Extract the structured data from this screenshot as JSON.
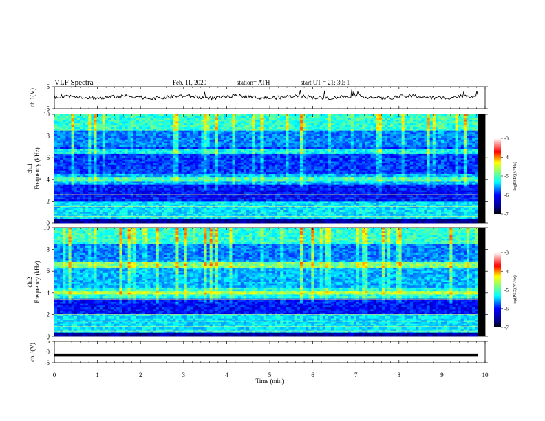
{
  "header": {
    "title": "VLF  Spectra",
    "date": "Feb. 11, 2020",
    "station": "station= ATH",
    "start": "start  UT  =    21: 30: 1"
  },
  "chart_data": [
    {
      "type": "line",
      "ylabel": "ch.1(V)",
      "ylim": [
        -5,
        5
      ],
      "yticks": [
        5,
        -5
      ],
      "xlim": [
        0,
        10
      ],
      "baseline": 0.3,
      "color": "#000000"
    },
    {
      "type": "heatmap",
      "ylabel_lines": [
        "ch.1",
        "Frequency  (kHz)"
      ],
      "ylim": [
        0,
        10
      ],
      "yticks": [
        0,
        2,
        4,
        6,
        8,
        10
      ],
      "xlim": [
        0,
        10
      ],
      "data_end_min": 9.83,
      "colorbar": {
        "label": "log(PSD)(V²/Hz)",
        "range": [
          -7,
          -3
        ],
        "ticks": [
          -3,
          -4,
          -5,
          -6,
          -7
        ]
      }
    },
    {
      "type": "heatmap",
      "ylabel_lines": [
        "ch.2",
        "Frequency  (kHz)"
      ],
      "ylim": [
        0,
        10
      ],
      "yticks": [
        0,
        2,
        4,
        6,
        8,
        10
      ],
      "xlim": [
        0,
        10
      ],
      "data_end_min": 9.83,
      "colorbar": {
        "label": "log(PSD)(V²/Hz)",
        "range": [
          -7,
          -3
        ],
        "ticks": [
          -3,
          -4,
          -5,
          -6,
          -7
        ]
      }
    },
    {
      "type": "line",
      "ylabel": "ch.3(V)",
      "ylim": [
        -5,
        5
      ],
      "yticks": [
        5,
        0,
        -5
      ],
      "xlim": [
        0,
        10
      ],
      "baseline": -1.5,
      "color": "#000000"
    }
  ],
  "xaxis": {
    "label": "Time  (min)",
    "ticks": [
      0,
      1,
      2,
      3,
      4,
      5,
      6,
      7,
      8,
      9,
      10
    ]
  },
  "colors": {
    "jet": [
      "#00007f",
      "#0000ff",
      "#007fff",
      "#00ffff",
      "#7fff7f",
      "#ffff00",
      "#ff7f00",
      "#ff0000",
      "#ffffff"
    ]
  }
}
